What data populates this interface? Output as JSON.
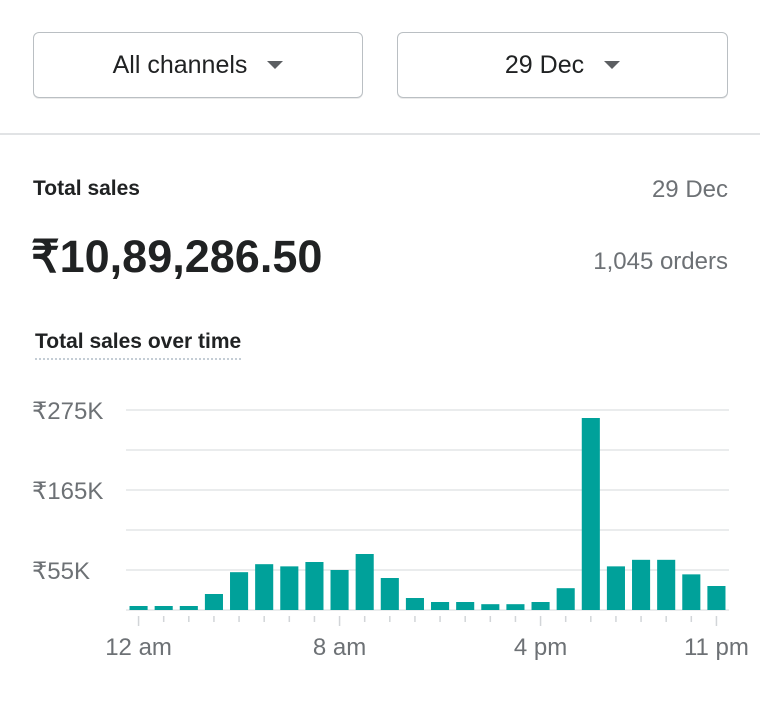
{
  "filters": {
    "channel": "All channels",
    "date": "29 Dec"
  },
  "summary": {
    "label": "Total sales",
    "date": "29 Dec",
    "value": "₹10,89,286.50",
    "orders": "1,045 orders"
  },
  "chart_data": {
    "type": "bar",
    "title": "Total sales over time",
    "categories": [
      "12 am",
      "1 am",
      "2 am",
      "3 am",
      "4 am",
      "5 am",
      "6 am",
      "7 am",
      "8 am",
      "9 am",
      "10 am",
      "11 am",
      "12 pm",
      "1 pm",
      "2 pm",
      "3 pm",
      "4 pm",
      "5 pm",
      "6 pm",
      "7 pm",
      "8 pm",
      "9 pm",
      "10 pm",
      "11 pm"
    ],
    "values": [
      5.5,
      5.5,
      5.5,
      22,
      52,
      63,
      60,
      66,
      55,
      77,
      44,
      16.5,
      11,
      11,
      8,
      8,
      11,
      30,
      264,
      60,
      69,
      69,
      49,
      33
    ],
    "unit": "K INR",
    "ylim": [
      0,
      275
    ],
    "yticks": [
      {
        "v": 275,
        "label": "₹275K"
      },
      {
        "v": 165,
        "label": "₹165K"
      },
      {
        "v": 55,
        "label": "₹55K"
      }
    ],
    "gridlines": [
      0,
      55,
      110,
      165,
      220,
      275
    ],
    "xticklabels": [
      {
        "i": 0,
        "label": "12 am"
      },
      {
        "i": 8,
        "label": "8 am"
      },
      {
        "i": 16,
        "label": "4 pm"
      },
      {
        "i": 23,
        "label": "11 pm"
      }
    ],
    "color": "#00a19a"
  }
}
